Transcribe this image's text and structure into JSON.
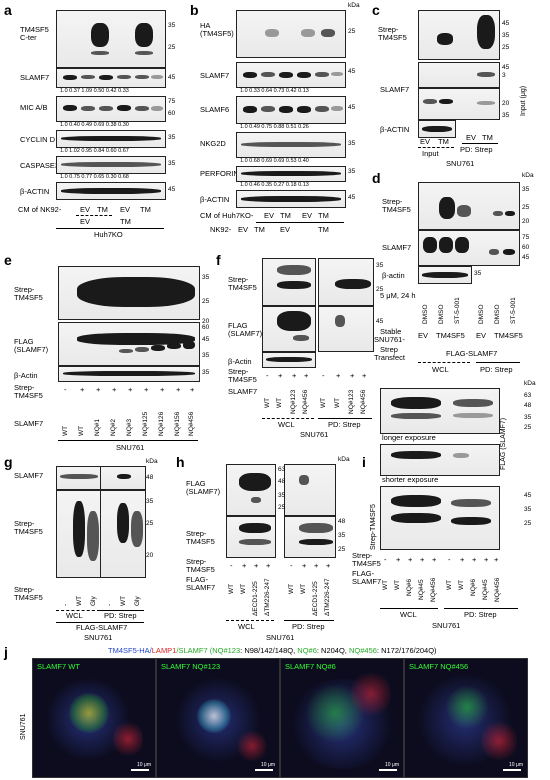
{
  "panels": {
    "a": {
      "letter": "a",
      "rows": [
        "TM4SF5 C-ter",
        "SLAMF7",
        "MIC A/B",
        "CYCLIN D",
        "CASPASE3",
        "β-ACTIN"
      ],
      "kda": [
        "35",
        "25",
        "45",
        "75",
        "60",
        "35",
        "35",
        "45"
      ],
      "nums_slamf7": "1.0   0.37   1.09   0.50   0.42   0.33",
      "nums_mic": "1.0   0.40   0.49   0.69   0.38   0.30",
      "nums_cyclin": "1.0   1.02   0.95   0.84   0.60   0.67",
      "nums_casp": "1.0   0.75   0.77   0.65   0.30   0.68",
      "cm_label": "CM of NK92-",
      "ev": "EV",
      "tm": "TM",
      "bottom": "Huh7KO"
    },
    "b": {
      "letter": "b",
      "rows": [
        "HA (TM4SF5)",
        "SLAMF7",
        "SLAMF6",
        "NKG2D",
        "PERFORIN",
        "β-ACTIN"
      ],
      "kda_head": "kDa",
      "kda": [
        "25",
        "45",
        "45",
        "35",
        "35",
        "45"
      ],
      "nums_slamf7": "1.0   0.33   0.64   0.73   0.42   0.13",
      "nums_slamf6": "1.0   0.49   0.75   0.88   0.51   0.26",
      "nums_nkg2d": "1.0   0.68   0.69   0.69   0.53   0.40",
      "nums_perforin": "1.0   0.46   0.35   0.27   0.18   0.13",
      "cm_label": "CM of Huh7KO-",
      "nk_label": "NK92-",
      "ev": "EV",
      "tm": "TM"
    },
    "c": {
      "letter": "c",
      "rows": [
        "Strep-TM4SF5",
        "SLAMF7",
        "β-ACTIN"
      ],
      "kda": [
        "45",
        "35",
        "25",
        "45",
        "35"
      ],
      "input_label": "Input (μg)",
      "input_vals": [
        "3",
        "20"
      ],
      "lanes": [
        "EV",
        "TM",
        "EV",
        "TM"
      ],
      "groups": [
        "Input",
        "PD: Strep"
      ],
      "bottom": "SNU761"
    },
    "d": {
      "letter": "d",
      "rows": [
        "Strep-TM4SF5",
        "SLAMF7",
        "β-actin"
      ],
      "kda_head": "kDa",
      "kda": [
        "35",
        "25",
        "20",
        "75",
        "60",
        "45",
        "35"
      ],
      "cond": "5 μM, 24 h",
      "treat": [
        "DMSO",
        "DMSO",
        "ST-5-001",
        "DMSO",
        "DMSO",
        "ST-5-001"
      ],
      "stable_label": "Stable",
      "snu_label": "SNU761-",
      "stable_vals": [
        "EV",
        "TM4SF5",
        "EV",
        "TM4SF5"
      ],
      "strep_label": "Strep",
      "transfect_label": "Transfect",
      "flag": "FLAG-SLAMF7",
      "groups": [
        "WCL",
        "PD: Strep"
      ]
    },
    "e": {
      "letter": "e",
      "rows": [
        "Strep-TM4SF5",
        "FLAG (SLAMF7)",
        "β-Actin"
      ],
      "kda": [
        "35",
        "25",
        "20",
        "60",
        "45",
        "35",
        "35"
      ],
      "strep_row": "Strep-TM4SF5",
      "signs": [
        "-",
        "+",
        "+",
        "+",
        "+",
        "+",
        "+",
        "+",
        "+"
      ],
      "slamf7_row": "SLAMF7",
      "mutants": [
        "WT",
        "WT",
        "NQ#1",
        "NQ#2",
        "NQ#3",
        "NQ#125",
        "NQ#126",
        "NQ#156",
        "NQ#456"
      ],
      "bottom": "SNU761"
    },
    "f": {
      "letter": "f",
      "rows": [
        "Strep-TM4SF5",
        "FLAG (SLAMF7)",
        "β-Actin"
      ],
      "kda": [
        "35",
        "25",
        "45"
      ],
      "strep_row": "Strep-TM4SF5",
      "signs": [
        "-",
        "+",
        "+",
        "+",
        "-",
        "+",
        "+",
        "+"
      ],
      "slamf7_row": "SLAMF7",
      "mutants": [
        "WT",
        "WT",
        "NQ#123",
        "NQ#456",
        "WT",
        "WT",
        "NQ#123",
        "NQ#456"
      ],
      "groups": [
        "WCL",
        "PD: Strep"
      ],
      "bottom": "SNU761"
    },
    "g": {
      "letter": "g",
      "rows": [
        "SLAMF7",
        "Strep-TM4SF5"
      ],
      "kda_head": "kDa",
      "kda": [
        "48",
        "35",
        "25",
        "20"
      ],
      "strep_row": "Strep-TM4SF5",
      "lanes": [
        "-",
        "WT",
        "Gly",
        "-",
        "WT",
        "Gly"
      ],
      "flag": "FLAG-SLAMF7",
      "groups": [
        "WCL",
        "PD: Strep"
      ],
      "bottom": "SNU761"
    },
    "h": {
      "letter": "h",
      "rows": [
        "FLAG (SLAMF7)",
        "Strep-TM4SF5"
      ],
      "kda_head": "kDa",
      "kda": [
        "63",
        "48",
        "35",
        "25",
        "48",
        "35",
        "25"
      ],
      "strep_row": "Strep-TM4SF5",
      "signs": [
        "-",
        "+",
        "+",
        "+",
        "-",
        "+",
        "+",
        "+"
      ],
      "flag_row": "FLAG-SLAMF7",
      "mutants": [
        "WT",
        "WT",
        "ΔECD1-225",
        "ΔTM226-247",
        "WT",
        "WT",
        "ΔECD1-225",
        "ΔTM226-247"
      ],
      "groups": [
        "WCL",
        "PD: Strep"
      ],
      "bottom": "SNU761"
    },
    "i": {
      "letter": "i",
      "rows": [
        "FLAG (SLAMF7)",
        "Strep-TM4SF5"
      ],
      "longer": "longer exposure",
      "shorter": "shorter exposure",
      "kda_head": "kDa",
      "kda": [
        "63",
        "48",
        "35",
        "25",
        "45",
        "35",
        "25"
      ],
      "strep_row": "Strep-TM4SF5",
      "signs": [
        "-",
        "+",
        "+",
        "+",
        "+",
        "-",
        "+",
        "+",
        "+",
        "+"
      ],
      "flag_row": "FLAG-SLAMF7",
      "mutants": [
        "WT",
        "WT",
        "NQ#6",
        "NQ#45",
        "NQ#456",
        "WT",
        "WT",
        "NQ#6",
        "NQ#45",
        "NQ#456"
      ],
      "groups": [
        "WCL",
        "PD: Strep"
      ],
      "bottom": "SNU761"
    },
    "j": {
      "letter": "j",
      "title_a": "TM4SF5-HA/",
      "title_b": "LAMP1",
      "title_c": "/SLAMF7 (",
      "title_d": "NQ#123",
      "title_e": ": N98/142/148Q, ",
      "title_f": "NQ#6",
      "title_g": ": N204Q, ",
      "title_h": "NQ#456",
      "title_i": ": N172/176/204Q)",
      "side": "SNU761",
      "images": [
        "SLAMF7 WT",
        "SLAMF7 NQ#123",
        "SLAMF7 NQ#6",
        "SLAMF7 NQ#456"
      ],
      "scale": "10 μm"
    }
  },
  "colors": {
    "green": "#22aa22",
    "red": "#dd2222",
    "blue": "#2244cc"
  }
}
